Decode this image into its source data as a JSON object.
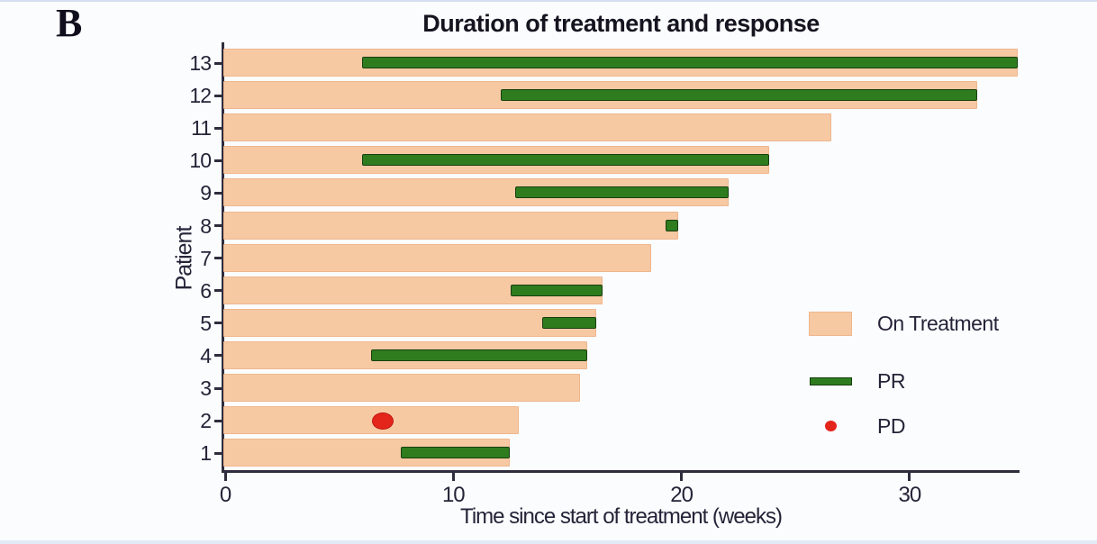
{
  "panel_label": "B",
  "colors": {
    "background": "#fbfcfe",
    "strip_top": "#d3deee",
    "strip_bottom": "#e2eaf5",
    "on_treatment_fill": "#f6c9a3",
    "on_treatment_border": "#efb78e",
    "pr_fill": "#2e7c1e",
    "pr_border": "#173f10",
    "pd_fill": "#e3251b",
    "pd_border": "#c01510",
    "axis": "#2f2d3d",
    "text": "#262338",
    "title": "#16141f"
  },
  "chart_data": {
    "type": "bar",
    "subtype": "swimmer-plot",
    "title": "Duration of treatment and response",
    "xlabel": "Time since start of treatment (weeks)",
    "ylabel": "Patient",
    "xlim": [
      0,
      34.9
    ],
    "xticks": [
      0,
      10,
      20,
      30
    ],
    "grid": false,
    "legend_position": "right-middle",
    "categories": [
      13,
      12,
      11,
      10,
      9,
      8,
      7,
      6,
      5,
      4,
      3,
      2,
      1
    ],
    "patients": [
      {
        "id": 13,
        "on_treatment_weeks": 34.8,
        "pr_start": 6.0,
        "pr_end": 34.8,
        "pd_week": null
      },
      {
        "id": 12,
        "on_treatment_weeks": 33.0,
        "pr_start": 12.1,
        "pr_end": 33.0,
        "pd_week": null
      },
      {
        "id": 11,
        "on_treatment_weeks": 26.6,
        "pr_start": null,
        "pr_end": null,
        "pd_week": null
      },
      {
        "id": 10,
        "on_treatment_weeks": 23.9,
        "pr_start": 6.0,
        "pr_end": 23.9,
        "pd_week": null
      },
      {
        "id": 9,
        "on_treatment_weeks": 22.1,
        "pr_start": 12.7,
        "pr_end": 22.1,
        "pd_week": null
      },
      {
        "id": 8,
        "on_treatment_weeks": 19.9,
        "pr_start": 19.3,
        "pr_end": 19.9,
        "pd_week": null
      },
      {
        "id": 7,
        "on_treatment_weeks": 18.7,
        "pr_start": null,
        "pr_end": null,
        "pd_week": null
      },
      {
        "id": 6,
        "on_treatment_weeks": 16.6,
        "pr_start": 12.5,
        "pr_end": 16.6,
        "pd_week": null
      },
      {
        "id": 5,
        "on_treatment_weeks": 16.3,
        "pr_start": 13.9,
        "pr_end": 16.3,
        "pd_week": null
      },
      {
        "id": 4,
        "on_treatment_weeks": 15.9,
        "pr_start": 6.4,
        "pr_end": 15.9,
        "pd_week": null
      },
      {
        "id": 3,
        "on_treatment_weeks": 15.6,
        "pr_start": null,
        "pr_end": null,
        "pd_week": null
      },
      {
        "id": 2,
        "on_treatment_weeks": 12.9,
        "pr_start": null,
        "pr_end": null,
        "pd_week": 6.9
      },
      {
        "id": 1,
        "on_treatment_weeks": 12.5,
        "pr_start": 7.7,
        "pr_end": 12.5,
        "pd_week": null
      }
    ],
    "legend": [
      {
        "label": "On Treatment",
        "swatch": "rect"
      },
      {
        "label": "PR",
        "swatch": "bar"
      },
      {
        "label": "PD",
        "swatch": "dot"
      }
    ]
  }
}
